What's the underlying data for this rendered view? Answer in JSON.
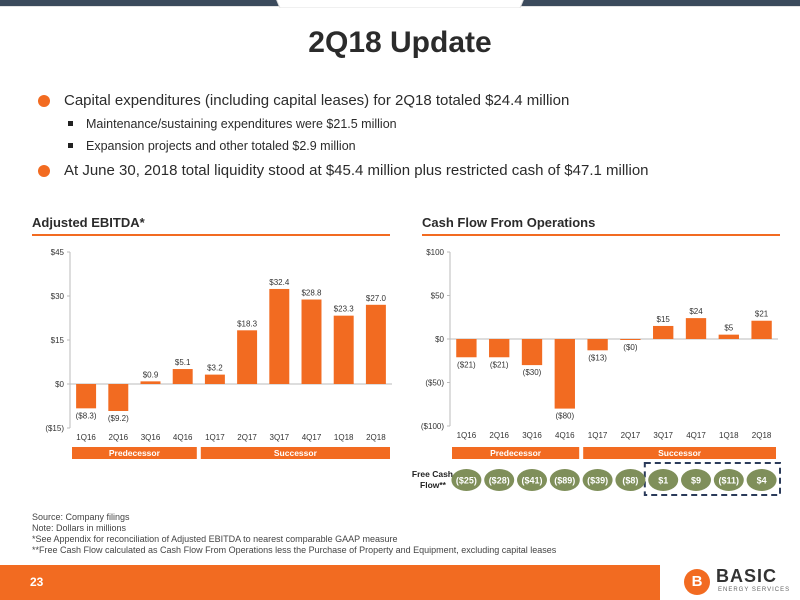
{
  "slide": {
    "title": "2Q18 Update",
    "page_number": "23"
  },
  "bullets": [
    {
      "text": "Capital expenditures (including capital leases) for 2Q18 totaled $24.4 million",
      "sub": [
        "Maintenance/sustaining expenditures were $21.5 million",
        "Expansion projects and other totaled $2.9 million"
      ]
    },
    {
      "text": "At June 30, 2018 total liquidity stood at $45.4 million plus restricted cash of $47.1 million",
      "sub": []
    }
  ],
  "colors": {
    "accent": "#f26b21",
    "green": "#7f8f5a",
    "navy": "#3b4a5c"
  },
  "chart_data": [
    {
      "type": "bar",
      "title": "Adjusted EBITDA*",
      "categories": [
        "1Q16",
        "2Q16",
        "3Q16",
        "4Q16",
        "1Q17",
        "2Q17",
        "3Q17",
        "4Q17",
        "1Q18",
        "2Q18"
      ],
      "values": [
        -8.3,
        -9.2,
        0.9,
        5.1,
        3.2,
        18.3,
        32.4,
        28.8,
        23.3,
        27.0
      ],
      "value_labels": [
        "($8.3)",
        "($9.2)",
        "$0.9",
        "$5.1",
        "$3.2",
        "$18.3",
        "$32.4",
        "$28.8",
        "$23.3",
        "$27.0"
      ],
      "y_ticks": [
        -15,
        0,
        15,
        30,
        45
      ],
      "y_tick_labels": [
        "($15)",
        "$0",
        "$15",
        "$30",
        "$45"
      ],
      "ylim": [
        -15,
        45
      ],
      "groups": [
        {
          "label": "Predecessor",
          "from": 0,
          "to": 3
        },
        {
          "label": "Successor",
          "from": 4,
          "to": 9
        }
      ]
    },
    {
      "type": "bar",
      "title": "Cash Flow From Operations",
      "categories": [
        "1Q16",
        "2Q16",
        "3Q16",
        "4Q16",
        "1Q17",
        "2Q17",
        "3Q17",
        "4Q17",
        "1Q18",
        "2Q18"
      ],
      "values": [
        -21,
        -21,
        -30,
        -80,
        -13,
        -0.4,
        15,
        24,
        5,
        21
      ],
      "value_labels": [
        "($21)",
        "($21)",
        "($30)",
        "($80)",
        "($13)",
        "($0)",
        "$15",
        "$24",
        "$5",
        "$21"
      ],
      "y_ticks": [
        -100,
        -50,
        0,
        50,
        100
      ],
      "y_tick_labels": [
        "($100)",
        "($50)",
        "$0",
        "$50",
        "$100"
      ],
      "ylim": [
        -100,
        100
      ],
      "groups": [
        {
          "label": "Predecessor",
          "from": 0,
          "to": 3
        },
        {
          "label": "Successor",
          "from": 4,
          "to": 9
        }
      ],
      "free_cash_flow": {
        "label_line1": "Free Cash",
        "label_line2": "Flow**",
        "values": [
          "($25)",
          "($28)",
          "($41)",
          "($89)",
          "($39)",
          "($8)",
          "$1",
          "$9",
          "($11)",
          "$4"
        ],
        "highlight_from": 6
      }
    }
  ],
  "footnotes": [
    "Source: Company filings",
    "Note: Dollars in millions",
    "*See Appendix for reconciliation of Adjusted EBITDA to nearest comparable GAAP measure",
    "**Free Cash Flow calculated as Cash Flow From Operations less the Purchase of Property and Equipment, excluding capital leases"
  ],
  "logo": {
    "letter": "B",
    "name": "BASIC",
    "sub": "ENERGY SERVICES"
  }
}
